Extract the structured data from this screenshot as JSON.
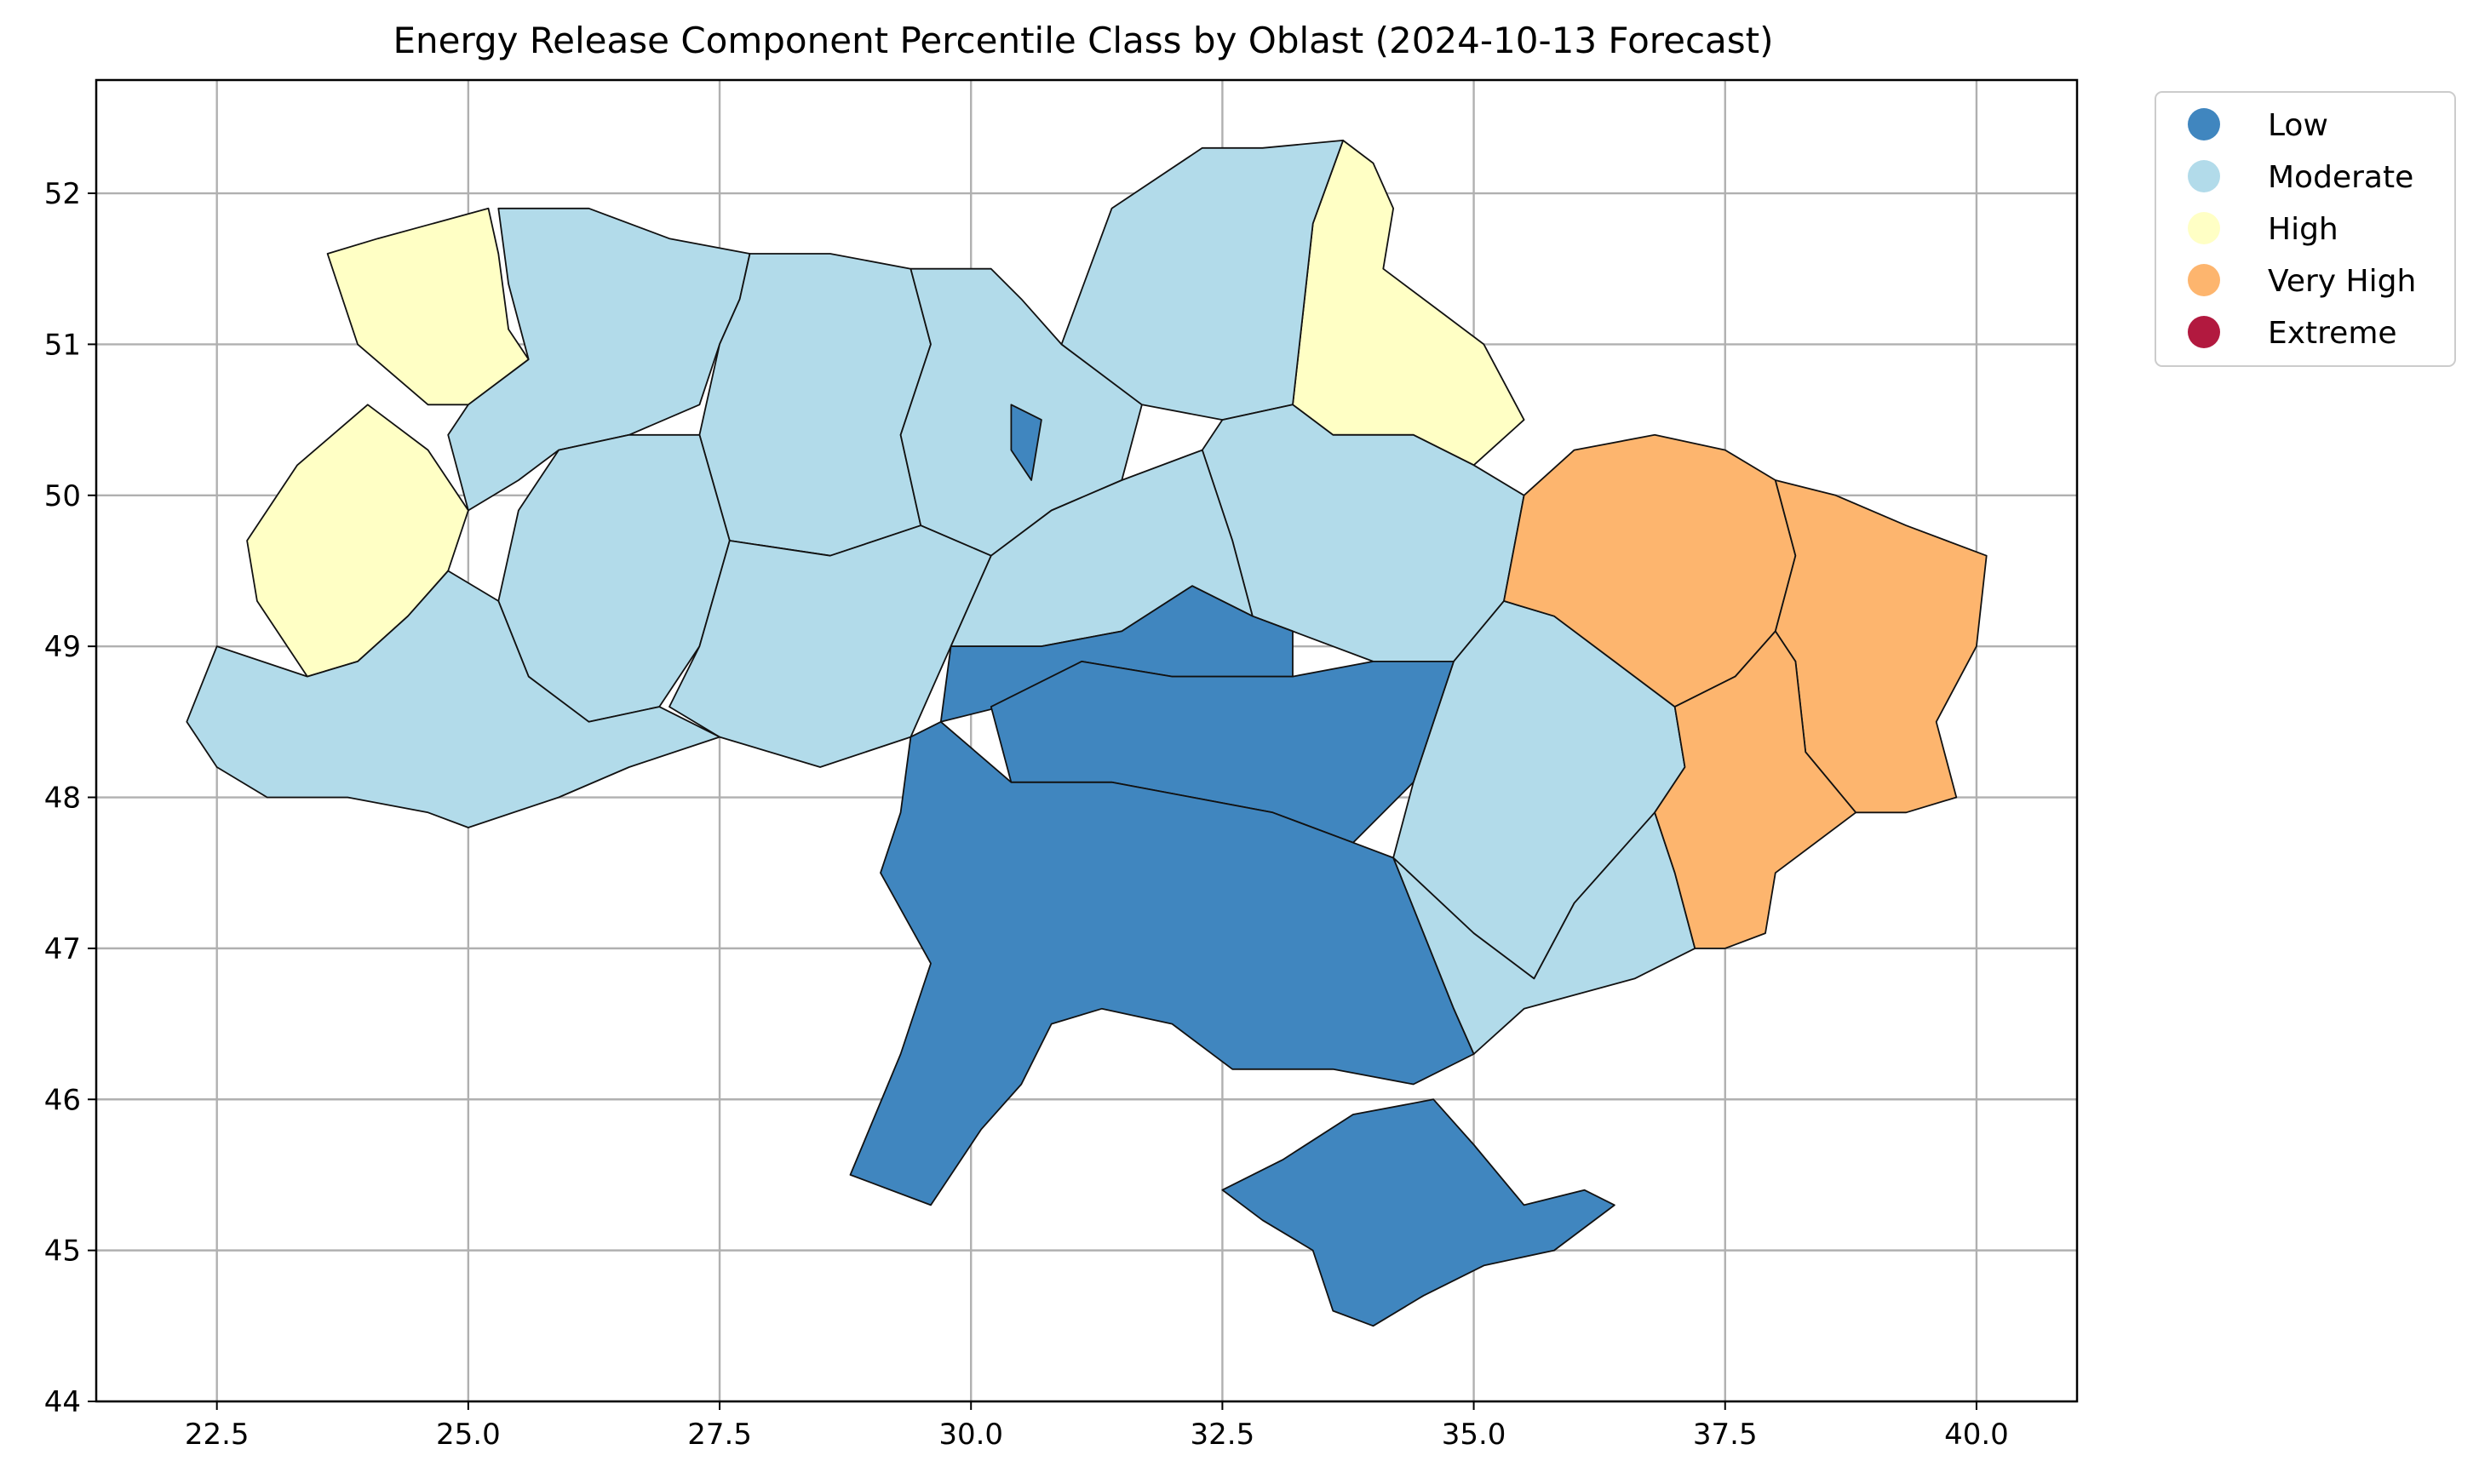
{
  "chart_data": {
    "type": "choropleth",
    "title": "Energy Release Component Percentile Class by Oblast (2024-10-13 Forecast)",
    "xlabel": "",
    "ylabel": "",
    "xlim": [
      21.3,
      41.0
    ],
    "ylim": [
      44.0,
      52.75
    ],
    "x_ticks": [
      22.5,
      25.0,
      27.5,
      30.0,
      32.5,
      35.0,
      37.5,
      40.0
    ],
    "x_tick_labels": [
      "22.5",
      "25.0",
      "27.5",
      "30.0",
      "32.5",
      "35.0",
      "37.5",
      "40.0"
    ],
    "y_ticks": [
      44,
      45,
      46,
      47,
      48,
      49,
      50,
      51,
      52
    ],
    "y_tick_labels": [
      "44",
      "45",
      "46",
      "47",
      "48",
      "49",
      "50",
      "51",
      "52"
    ],
    "grid": true,
    "legend_position": "outside-top-right",
    "legend": [
      {
        "label": "Low",
        "color": "#4086bf"
      },
      {
        "label": "Moderate",
        "color": "#b2dbea"
      },
      {
        "label": "High",
        "color": "#ffffc5"
      },
      {
        "label": "Very High",
        "color": "#fdb56e"
      },
      {
        "label": "Extreme",
        "color": "#b2193f"
      }
    ],
    "regions": [
      {
        "class": "High",
        "color": "#ffffc5",
        "coords": [
          [
            23.6,
            51.6
          ],
          [
            24.1,
            51.7
          ],
          [
            25.2,
            51.9
          ],
          [
            25.3,
            51.6
          ],
          [
            25.4,
            51.1
          ],
          [
            25.6,
            50.9
          ],
          [
            25.0,
            50.6
          ],
          [
            24.6,
            50.6
          ],
          [
            23.9,
            51.0
          ],
          [
            23.7,
            51.4
          ]
        ]
      },
      {
        "class": "High",
        "color": "#ffffc5",
        "coords": [
          [
            24.0,
            50.6
          ],
          [
            24.6,
            50.3
          ],
          [
            25.0,
            49.9
          ],
          [
            24.8,
            49.5
          ],
          [
            24.4,
            49.2
          ],
          [
            23.9,
            48.9
          ],
          [
            23.4,
            48.8
          ],
          [
            22.9,
            49.3
          ],
          [
            22.8,
            49.7
          ],
          [
            23.3,
            50.2
          ]
        ]
      },
      {
        "class": "High",
        "color": "#ffffc5",
        "coords": [
          [
            33.7,
            52.35
          ],
          [
            34.0,
            52.2
          ],
          [
            34.2,
            51.9
          ],
          [
            34.1,
            51.5
          ],
          [
            34.7,
            51.2
          ],
          [
            35.1,
            51.0
          ],
          [
            35.5,
            50.5
          ],
          [
            35.0,
            50.2
          ],
          [
            34.4,
            50.4
          ],
          [
            33.6,
            50.4
          ],
          [
            33.2,
            50.6
          ],
          [
            33.3,
            51.2
          ],
          [
            33.4,
            51.8
          ]
        ]
      },
      {
        "class": "Moderate",
        "color": "#b2dbea",
        "coords": [
          [
            25.3,
            51.9
          ],
          [
            26.2,
            51.9
          ],
          [
            27.0,
            51.7
          ],
          [
            27.8,
            51.6
          ],
          [
            27.7,
            51.3
          ],
          [
            27.5,
            51.0
          ],
          [
            27.3,
            50.6
          ],
          [
            26.6,
            50.4
          ],
          [
            25.9,
            50.3
          ],
          [
            25.5,
            50.1
          ],
          [
            25.0,
            49.9
          ],
          [
            24.8,
            50.4
          ],
          [
            25.0,
            50.6
          ],
          [
            25.6,
            50.9
          ],
          [
            25.4,
            51.4
          ]
        ]
      },
      {
        "class": "Moderate",
        "color": "#b2dbea",
        "coords": [
          [
            27.8,
            51.6
          ],
          [
            28.6,
            51.6
          ],
          [
            29.4,
            51.5
          ],
          [
            29.6,
            51.0
          ],
          [
            29.3,
            50.4
          ],
          [
            29.5,
            49.8
          ],
          [
            28.6,
            49.6
          ],
          [
            27.6,
            49.7
          ],
          [
            27.3,
            50.4
          ],
          [
            27.5,
            51.0
          ],
          [
            27.7,
            51.3
          ]
        ]
      },
      {
        "class": "Moderate",
        "color": "#b2dbea",
        "coords": [
          [
            29.4,
            51.5
          ],
          [
            30.2,
            51.5
          ],
          [
            30.5,
            51.3
          ],
          [
            30.9,
            51.0
          ],
          [
            31.7,
            50.6
          ],
          [
            31.5,
            50.1
          ],
          [
            30.8,
            49.9
          ],
          [
            30.2,
            49.6
          ],
          [
            29.5,
            49.8
          ],
          [
            29.3,
            50.4
          ],
          [
            29.6,
            51.0
          ]
        ]
      },
      {
        "class": "Moderate",
        "color": "#b2dbea",
        "coords": [
          [
            30.9,
            51.0
          ],
          [
            31.4,
            51.9
          ],
          [
            32.3,
            52.3
          ],
          [
            32.9,
            52.3
          ],
          [
            33.7,
            52.35
          ],
          [
            33.4,
            51.8
          ],
          [
            33.3,
            51.2
          ],
          [
            33.2,
            50.6
          ],
          [
            32.5,
            50.5
          ],
          [
            31.7,
            50.6
          ]
        ]
      },
      {
        "class": "Moderate",
        "color": "#b2dbea",
        "coords": [
          [
            32.5,
            50.5
          ],
          [
            33.2,
            50.6
          ],
          [
            33.6,
            50.4
          ],
          [
            34.4,
            50.4
          ],
          [
            35.0,
            50.2
          ],
          [
            35.5,
            50.0
          ],
          [
            35.3,
            49.3
          ],
          [
            34.8,
            48.9
          ],
          [
            34.0,
            48.9
          ],
          [
            33.2,
            49.1
          ],
          [
            32.8,
            49.2
          ],
          [
            32.6,
            49.7
          ],
          [
            32.3,
            50.3
          ]
        ]
      },
      {
        "class": "Moderate",
        "color": "#b2dbea",
        "coords": [
          [
            25.9,
            50.3
          ],
          [
            26.6,
            50.4
          ],
          [
            27.3,
            50.4
          ],
          [
            27.6,
            49.7
          ],
          [
            27.3,
            49.0
          ],
          [
            26.9,
            48.6
          ],
          [
            26.2,
            48.5
          ],
          [
            25.6,
            48.8
          ],
          [
            25.3,
            49.3
          ],
          [
            25.5,
            49.9
          ]
        ]
      },
      {
        "class": "Moderate",
        "color": "#b2dbea",
        "coords": [
          [
            27.6,
            49.7
          ],
          [
            28.6,
            49.6
          ],
          [
            29.5,
            49.8
          ],
          [
            30.2,
            49.6
          ],
          [
            29.8,
            49.0
          ],
          [
            29.4,
            48.4
          ],
          [
            28.5,
            48.2
          ],
          [
            27.5,
            48.4
          ],
          [
            27.0,
            48.6
          ],
          [
            27.3,
            49.0
          ]
        ]
      },
      {
        "class": "Moderate",
        "color": "#b2dbea",
        "coords": [
          [
            30.2,
            49.6
          ],
          [
            30.8,
            49.9
          ],
          [
            31.5,
            50.1
          ],
          [
            32.3,
            50.3
          ],
          [
            32.6,
            49.7
          ],
          [
            32.8,
            49.2
          ],
          [
            32.2,
            49.4
          ],
          [
            31.5,
            49.1
          ],
          [
            30.7,
            49.0
          ],
          [
            29.8,
            49.0
          ]
        ]
      },
      {
        "class": "Moderate",
        "color": "#b2dbea",
        "coords": [
          [
            22.2,
            48.5
          ],
          [
            22.5,
            49.0
          ],
          [
            23.4,
            48.8
          ],
          [
            23.9,
            48.9
          ],
          [
            24.4,
            49.2
          ],
          [
            24.8,
            49.5
          ],
          [
            25.3,
            49.3
          ],
          [
            25.6,
            48.8
          ],
          [
            26.2,
            48.5
          ],
          [
            26.9,
            48.6
          ],
          [
            27.5,
            48.4
          ],
          [
            26.6,
            48.2
          ],
          [
            25.9,
            48.0
          ],
          [
            25.0,
            47.8
          ],
          [
            24.6,
            47.9
          ],
          [
            23.8,
            48.0
          ],
          [
            23.0,
            48.0
          ],
          [
            22.5,
            48.2
          ]
        ]
      },
      {
        "class": "Moderate",
        "color": "#b2dbea",
        "coords": [
          [
            34.8,
            48.9
          ],
          [
            35.3,
            49.3
          ],
          [
            35.8,
            49.2
          ],
          [
            36.4,
            48.9
          ],
          [
            37.0,
            48.6
          ],
          [
            37.1,
            48.2
          ],
          [
            36.8,
            47.9
          ],
          [
            36.0,
            47.3
          ],
          [
            35.6,
            46.8
          ],
          [
            35.0,
            47.1
          ],
          [
            34.2,
            47.6
          ],
          [
            34.4,
            48.1
          ]
        ]
      },
      {
        "class": "Moderate",
        "color": "#b2dbea",
        "coords": [
          [
            34.2,
            47.6
          ],
          [
            35.0,
            47.1
          ],
          [
            35.6,
            46.8
          ],
          [
            36.0,
            47.3
          ],
          [
            36.8,
            47.9
          ],
          [
            37.0,
            47.5
          ],
          [
            37.2,
            47.0
          ],
          [
            36.6,
            46.8
          ],
          [
            35.5,
            46.6
          ],
          [
            35.0,
            46.3
          ],
          [
            34.8,
            46.6
          ]
        ]
      },
      {
        "class": "Very High",
        "color": "#fdb56e",
        "coords": [
          [
            35.5,
            50.0
          ],
          [
            36.0,
            50.3
          ],
          [
            36.8,
            50.4
          ],
          [
            37.5,
            50.3
          ],
          [
            38.0,
            50.1
          ],
          [
            38.2,
            49.6
          ],
          [
            38.0,
            49.1
          ],
          [
            37.6,
            48.8
          ],
          [
            37.0,
            48.6
          ],
          [
            36.4,
            48.9
          ],
          [
            35.8,
            49.2
          ],
          [
            35.3,
            49.3
          ]
        ]
      },
      {
        "class": "Very High",
        "color": "#fdb56e",
        "coords": [
          [
            38.0,
            50.1
          ],
          [
            38.6,
            50.0
          ],
          [
            39.3,
            49.8
          ],
          [
            40.1,
            49.6
          ],
          [
            40.0,
            49.0
          ],
          [
            39.6,
            48.5
          ],
          [
            39.8,
            48.0
          ],
          [
            39.3,
            47.9
          ],
          [
            38.8,
            47.9
          ],
          [
            38.3,
            48.3
          ],
          [
            38.2,
            48.9
          ],
          [
            38.0,
            49.1
          ],
          [
            38.2,
            49.6
          ]
        ]
      },
      {
        "class": "Very High",
        "color": "#fdb56e",
        "coords": [
          [
            37.0,
            48.6
          ],
          [
            37.6,
            48.8
          ],
          [
            38.0,
            49.1
          ],
          [
            38.2,
            48.9
          ],
          [
            38.3,
            48.3
          ],
          [
            38.8,
            47.9
          ],
          [
            38.0,
            47.5
          ],
          [
            37.9,
            47.1
          ],
          [
            37.5,
            47.0
          ],
          [
            37.2,
            47.0
          ],
          [
            37.0,
            47.5
          ],
          [
            36.8,
            47.9
          ],
          [
            37.1,
            48.2
          ]
        ]
      },
      {
        "class": "Low",
        "color": "#4086bf",
        "coords": [
          [
            30.4,
            50.6
          ],
          [
            30.7,
            50.5
          ],
          [
            30.6,
            50.1
          ],
          [
            30.4,
            50.3
          ]
        ]
      },
      {
        "class": "Low",
        "color": "#4086bf",
        "coords": [
          [
            29.8,
            49.0
          ],
          [
            30.7,
            49.0
          ],
          [
            31.5,
            49.1
          ],
          [
            32.2,
            49.4
          ],
          [
            32.8,
            49.2
          ],
          [
            33.2,
            49.1
          ],
          [
            33.2,
            48.8
          ],
          [
            32.0,
            48.8
          ],
          [
            31.1,
            48.9
          ],
          [
            30.3,
            48.6
          ],
          [
            29.7,
            48.5
          ]
        ]
      },
      {
        "class": "Low",
        "color": "#4086bf",
        "coords": [
          [
            30.2,
            48.6
          ],
          [
            31.1,
            48.9
          ],
          [
            32.0,
            48.8
          ],
          [
            33.2,
            48.8
          ],
          [
            34.0,
            48.9
          ],
          [
            34.8,
            48.9
          ],
          [
            34.4,
            48.1
          ],
          [
            33.8,
            47.7
          ],
          [
            33.0,
            47.9
          ],
          [
            32.2,
            48.0
          ],
          [
            31.4,
            48.1
          ],
          [
            30.4,
            48.1
          ]
        ]
      },
      {
        "class": "Low",
        "color": "#4086bf",
        "coords": [
          [
            29.4,
            48.4
          ],
          [
            29.7,
            48.5
          ],
          [
            30.4,
            48.1
          ],
          [
            31.4,
            48.1
          ],
          [
            32.2,
            48.0
          ],
          [
            33.0,
            47.9
          ],
          [
            33.8,
            47.7
          ],
          [
            34.2,
            47.6
          ],
          [
            34.8,
            46.6
          ],
          [
            35.0,
            46.3
          ],
          [
            34.4,
            46.1
          ],
          [
            33.6,
            46.2
          ],
          [
            32.6,
            46.2
          ],
          [
            32.0,
            46.5
          ],
          [
            31.3,
            46.6
          ],
          [
            30.8,
            46.5
          ],
          [
            30.5,
            46.1
          ],
          [
            30.1,
            45.8
          ],
          [
            29.6,
            45.3
          ],
          [
            28.8,
            45.5
          ],
          [
            29.3,
            46.3
          ],
          [
            29.6,
            46.9
          ],
          [
            29.1,
            47.5
          ],
          [
            29.3,
            47.9
          ]
        ]
      },
      {
        "class": "Low",
        "color": "#4086bf",
        "coords": [
          [
            32.5,
            45.4
          ],
          [
            33.1,
            45.6
          ],
          [
            33.8,
            45.9
          ],
          [
            34.6,
            46.0
          ],
          [
            35.0,
            45.7
          ],
          [
            35.5,
            45.3
          ],
          [
            36.1,
            45.4
          ],
          [
            36.4,
            45.3
          ],
          [
            35.8,
            45.0
          ],
          [
            35.1,
            44.9
          ],
          [
            34.5,
            44.7
          ],
          [
            34.0,
            44.5
          ],
          [
            33.6,
            44.6
          ],
          [
            33.4,
            45.0
          ],
          [
            32.9,
            45.2
          ]
        ]
      }
    ]
  }
}
